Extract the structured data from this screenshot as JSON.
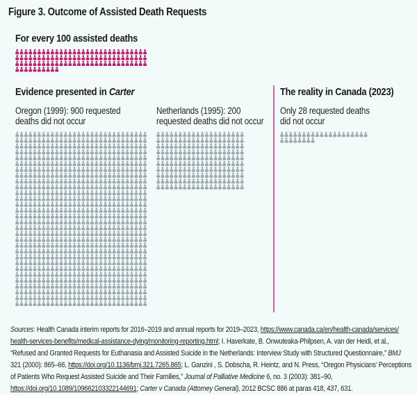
{
  "figure": {
    "title": "Figure 3. Outcome of Assisted Death Requests"
  },
  "colors": {
    "background": "#f3fafa",
    "assisted_icon": "#b5206f",
    "unfulfilled_icon": "#9aa8ae",
    "divider": "#c9679f"
  },
  "chart_data": {
    "type": "pictograph",
    "title": "Figure 3. Outcome of Assisted Death Requests",
    "icon": "person-icon",
    "baseline": {
      "label": "For every 100 assisted deaths",
      "value": 100,
      "per_row": 30,
      "color": "#b5206f"
    },
    "groups": [
      {
        "section": "Evidence presented in",
        "section_italic": "Carter",
        "label_line1": "Oregon (1999): 900 requested",
        "label_line2": "deaths did not occur",
        "name": "Oregon (1999)",
        "value": 900,
        "per_row": 30,
        "color": "#9aa8ae"
      },
      {
        "section": "Evidence presented in Carter",
        "label_line1": "Netherlands (1995): 200",
        "label_line2": "requested deaths did not occur",
        "name": "Netherlands (1995)",
        "value": 200,
        "per_row": 20,
        "color": "#9aa8ae"
      },
      {
        "section": "The reality in Canada (2023)",
        "label_line1": "Only 28 requested deaths",
        "label_line2": "did not occur",
        "name": "Canada (2023)",
        "value": 28,
        "per_row": 20,
        "color": "#9aa8ae"
      }
    ],
    "unit_note": "requested deaths that did not occur per 100 assisted deaths"
  },
  "sections": {
    "carter_heading": "Evidence presented in ",
    "carter_heading_italic": "Carter",
    "canada_heading": "The reality in Canada (2023)"
  },
  "footer": {
    "sources_label": "Sources",
    "l1_a": ": Health Canada interim reports for 2016–2019 and annual reports for 2019–2023, ",
    "l1_link": "https://www.canada.ca/en/health-canada/services/",
    "l2_link": "health-services-benefits/medical-assistance-dying/monitoring-reporting.html",
    "l2_b": "; I. Haverkate, B. Onwuteaka-Philpsen, A. van der Heidi, et al.,",
    "l3_a": "“Refused and Granted Requests for Euthanasia and Assisted Suicide in the Netherlands: Interview Study with Structured Questionnaire,” ",
    "l3_i": "BMJ",
    "l4_a": "321 (2000): 865–66, ",
    "l4_link": "https://doi.org/10.1136/bmj.321.7265.865",
    "l4_b": "; L. Ganzini , S. Dobscha, R. Heintz, and N. Press, “Oregon Physicians’ Perceptions",
    "l5_a": "of Patients Who Request Assisted Suicide and Their Families,” ",
    "l5_i": "Journal of Palliative Medicine",
    "l5_b": " 6, no. 3 (2003): 381–90,",
    "l6_link": "https://doi.org/10.1089/109662103322144691",
    "l6_a": "; ",
    "l6_i": "Carter v Canada (Attorney General),",
    "l6_b": " 2012 BCSC 886 at paras 418, 437, 631."
  }
}
